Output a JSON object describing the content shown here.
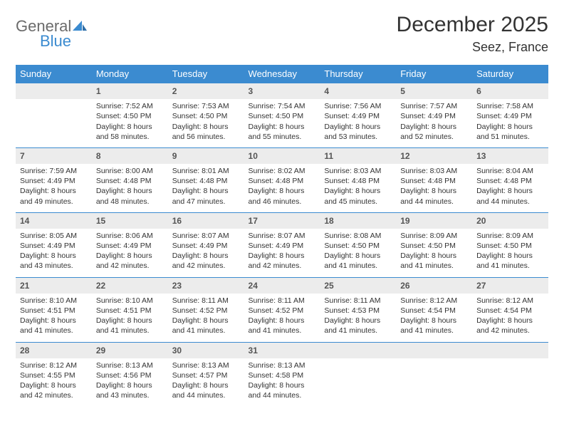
{
  "logo": {
    "general": "General",
    "blue": "Blue"
  },
  "title": "December 2025",
  "location": "Seez, France",
  "colors": {
    "header_bg": "#3b8bd0",
    "header_text": "#ffffff",
    "daynum_bg": "#ececec",
    "divider": "#3b8bd0",
    "text": "#333333",
    "logo_gray": "#6b6b6b",
    "logo_blue": "#3b8bd0"
  },
  "weekdays": [
    "Sunday",
    "Monday",
    "Tuesday",
    "Wednesday",
    "Thursday",
    "Friday",
    "Saturday"
  ],
  "weeks": [
    {
      "nums": [
        "",
        "1",
        "2",
        "3",
        "4",
        "5",
        "6"
      ],
      "cells": [
        "",
        "Sunrise: 7:52 AM\nSunset: 4:50 PM\nDaylight: 8 hours and 58 minutes.",
        "Sunrise: 7:53 AM\nSunset: 4:50 PM\nDaylight: 8 hours and 56 minutes.",
        "Sunrise: 7:54 AM\nSunset: 4:50 PM\nDaylight: 8 hours and 55 minutes.",
        "Sunrise: 7:56 AM\nSunset: 4:49 PM\nDaylight: 8 hours and 53 minutes.",
        "Sunrise: 7:57 AM\nSunset: 4:49 PM\nDaylight: 8 hours and 52 minutes.",
        "Sunrise: 7:58 AM\nSunset: 4:49 PM\nDaylight: 8 hours and 51 minutes."
      ]
    },
    {
      "nums": [
        "7",
        "8",
        "9",
        "10",
        "11",
        "12",
        "13"
      ],
      "cells": [
        "Sunrise: 7:59 AM\nSunset: 4:49 PM\nDaylight: 8 hours and 49 minutes.",
        "Sunrise: 8:00 AM\nSunset: 4:48 PM\nDaylight: 8 hours and 48 minutes.",
        "Sunrise: 8:01 AM\nSunset: 4:48 PM\nDaylight: 8 hours and 47 minutes.",
        "Sunrise: 8:02 AM\nSunset: 4:48 PM\nDaylight: 8 hours and 46 minutes.",
        "Sunrise: 8:03 AM\nSunset: 4:48 PM\nDaylight: 8 hours and 45 minutes.",
        "Sunrise: 8:03 AM\nSunset: 4:48 PM\nDaylight: 8 hours and 44 minutes.",
        "Sunrise: 8:04 AM\nSunset: 4:48 PM\nDaylight: 8 hours and 44 minutes."
      ]
    },
    {
      "nums": [
        "14",
        "15",
        "16",
        "17",
        "18",
        "19",
        "20"
      ],
      "cells": [
        "Sunrise: 8:05 AM\nSunset: 4:49 PM\nDaylight: 8 hours and 43 minutes.",
        "Sunrise: 8:06 AM\nSunset: 4:49 PM\nDaylight: 8 hours and 42 minutes.",
        "Sunrise: 8:07 AM\nSunset: 4:49 PM\nDaylight: 8 hours and 42 minutes.",
        "Sunrise: 8:07 AM\nSunset: 4:49 PM\nDaylight: 8 hours and 42 minutes.",
        "Sunrise: 8:08 AM\nSunset: 4:50 PM\nDaylight: 8 hours and 41 minutes.",
        "Sunrise: 8:09 AM\nSunset: 4:50 PM\nDaylight: 8 hours and 41 minutes.",
        "Sunrise: 8:09 AM\nSunset: 4:50 PM\nDaylight: 8 hours and 41 minutes."
      ]
    },
    {
      "nums": [
        "21",
        "22",
        "23",
        "24",
        "25",
        "26",
        "27"
      ],
      "cells": [
        "Sunrise: 8:10 AM\nSunset: 4:51 PM\nDaylight: 8 hours and 41 minutes.",
        "Sunrise: 8:10 AM\nSunset: 4:51 PM\nDaylight: 8 hours and 41 minutes.",
        "Sunrise: 8:11 AM\nSunset: 4:52 PM\nDaylight: 8 hours and 41 minutes.",
        "Sunrise: 8:11 AM\nSunset: 4:52 PM\nDaylight: 8 hours and 41 minutes.",
        "Sunrise: 8:11 AM\nSunset: 4:53 PM\nDaylight: 8 hours and 41 minutes.",
        "Sunrise: 8:12 AM\nSunset: 4:54 PM\nDaylight: 8 hours and 41 minutes.",
        "Sunrise: 8:12 AM\nSunset: 4:54 PM\nDaylight: 8 hours and 42 minutes."
      ]
    },
    {
      "nums": [
        "28",
        "29",
        "30",
        "31",
        "",
        "",
        ""
      ],
      "cells": [
        "Sunrise: 8:12 AM\nSunset: 4:55 PM\nDaylight: 8 hours and 42 minutes.",
        "Sunrise: 8:13 AM\nSunset: 4:56 PM\nDaylight: 8 hours and 43 minutes.",
        "Sunrise: 8:13 AM\nSunset: 4:57 PM\nDaylight: 8 hours and 44 minutes.",
        "Sunrise: 8:13 AM\nSunset: 4:58 PM\nDaylight: 8 hours and 44 minutes.",
        "",
        "",
        ""
      ]
    }
  ]
}
